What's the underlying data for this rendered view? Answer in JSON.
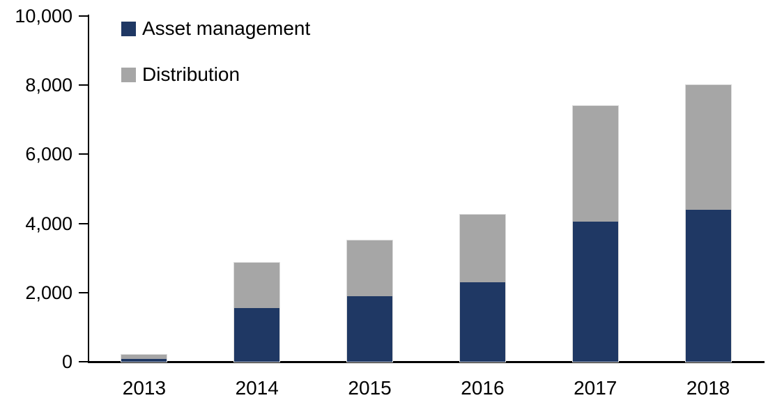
{
  "chart_data": {
    "type": "bar",
    "stacked": true,
    "title": "",
    "xlabel": "",
    "ylabel": "",
    "categories": [
      "2013",
      "2014",
      "2015",
      "2016",
      "2017",
      "2018"
    ],
    "series": [
      {
        "name": "Asset management",
        "color": "#1F3864",
        "values": [
          90,
          1550,
          1900,
          2300,
          4050,
          4400
        ]
      },
      {
        "name": "Distribution",
        "color": "#A6A6A6",
        "values": [
          110,
          1320,
          1600,
          1950,
          3350,
          3600
        ]
      }
    ],
    "totals": [
      200,
      2870,
      3500,
      4250,
      7400,
      8000
    ],
    "ylim": [
      0,
      10000
    ],
    "y_ticks": [
      0,
      2000,
      4000,
      6000,
      8000,
      10000
    ],
    "y_tick_labels": [
      "0",
      "2,000",
      "4,000",
      "6,000",
      "8,000",
      "10,000"
    ],
    "grid": false,
    "legend_position": "top-left",
    "axis_color": "#000000",
    "background_color": "#FFFFFF"
  }
}
